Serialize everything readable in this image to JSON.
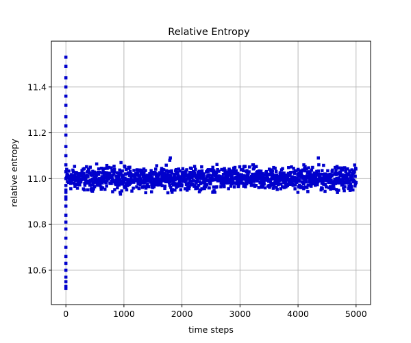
{
  "chart_data": {
    "type": "scatter",
    "title": "Relative Entropy",
    "xlabel": "time steps",
    "ylabel": "relative entropy",
    "xlim": [
      -250,
      5250
    ],
    "ylim": [
      10.45,
      11.6
    ],
    "grid": true,
    "legend": "none",
    "x_ticks": [
      0,
      1000,
      2000,
      3000,
      4000,
      5000
    ],
    "x_tick_labels": [
      "0",
      "1000",
      "2000",
      "3000",
      "4000",
      "5000"
    ],
    "y_ticks": [
      10.6,
      10.8,
      11.0,
      11.2,
      11.4
    ],
    "y_tick_labels": [
      "10.6",
      "10.8",
      "11.0",
      "11.2",
      "11.4"
    ],
    "series": [
      {
        "color": "#0000cc",
        "marker": "square",
        "initial_drop": {
          "x": [
            0,
            0,
            0,
            0,
            0,
            0,
            0,
            0,
            0,
            0,
            0,
            0,
            0,
            0,
            0,
            0,
            0,
            0,
            0,
            0,
            0,
            0,
            0,
            0,
            0,
            0,
            0,
            0,
            0,
            0,
            0,
            0
          ],
          "y": [
            11.53,
            11.49,
            11.44,
            11.4,
            11.36,
            11.32,
            11.27,
            11.23,
            11.19,
            11.14,
            11.1,
            11.06,
            11.03,
            11.0,
            10.97,
            10.94,
            10.91,
            10.88,
            10.84,
            10.81,
            10.78,
            10.74,
            10.7,
            10.66,
            10.63,
            10.6,
            10.57,
            10.55,
            10.53,
            10.52,
            10.95,
            10.92
          ]
        },
        "steady_state": {
          "x_start": 10,
          "x_end": 5000,
          "mean": 11.0,
          "band": [
            10.94,
            11.07
          ],
          "min": 10.93,
          "max": 11.09
        },
        "notable_points": {
          "x": [
            1790,
            1800,
            1830,
            2530,
            4350,
            4100,
            950,
            3230
          ],
          "y": [
            11.08,
            11.09,
            10.94,
            10.94,
            11.09,
            11.06,
            11.07,
            11.06
          ]
        }
      }
    ]
  }
}
